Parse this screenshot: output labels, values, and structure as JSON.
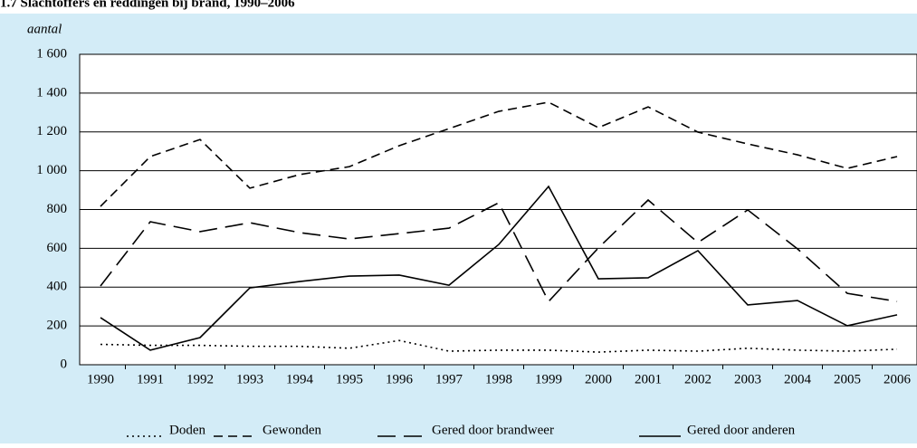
{
  "chart_data": {
    "type": "line",
    "title": "1.7 Slachtoffers en reddingen bij brand, 1990–2006",
    "y_label": "aantal",
    "categories": [
      "1990",
      "1991",
      "1992",
      "1993",
      "1994",
      "1995",
      "1996",
      "1997",
      "1998",
      "1999",
      "2000",
      "2001",
      "2002",
      "2003",
      "2004",
      "2005",
      "2006"
    ],
    "series": [
      {
        "name": "Doden",
        "color": "#000000",
        "values": [
          105,
          100,
          100,
          95,
          95,
          85,
          125,
          70,
          75,
          75,
          65,
          75,
          70,
          85,
          75,
          70,
          80
        ]
      },
      {
        "name": "Gewonden",
        "color": "#000000",
        "values": [
          816,
          1073,
          1161,
          910,
          980,
          1021,
          1129,
          1217,
          1306,
          1353,
          1222,
          1329,
          1199,
          1138,
          1082,
          1012,
          1073
        ]
      },
      {
        "name": "Gered door brandweer",
        "color": "#000000",
        "values": [
          406,
          737,
          686,
          732,
          681,
          648,
          676,
          704,
          835,
          326,
          602,
          849,
          630,
          798,
          597,
          368,
          326
        ]
      },
      {
        "name": "Gered door anderen",
        "color": "#000000",
        "values": [
          243,
          75,
          140,
          396,
          429,
          457,
          462,
          410,
          620,
          919,
          443,
          448,
          588,
          308,
          331,
          201,
          257
        ]
      }
    ],
    "ylim": [
      0,
      1600
    ],
    "yticks": [
      0,
      200,
      400,
      600,
      800,
      {
        "value": 1000,
        "label": "1 000"
      },
      {
        "value": 1200,
        "label": "1 200"
      },
      {
        "value": 1400,
        "label": "1 400"
      },
      {
        "value": 1600,
        "label": "1 600"
      }
    ],
    "grid": true
  }
}
